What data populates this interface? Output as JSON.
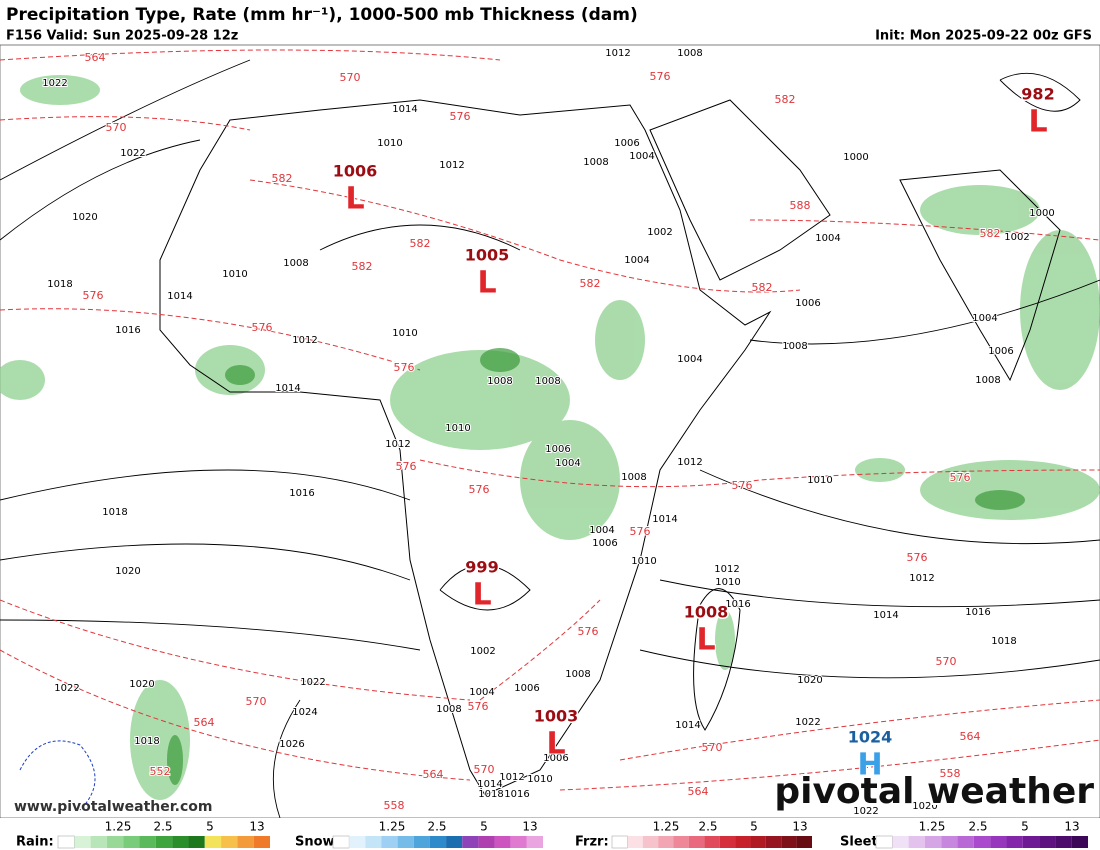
{
  "header": {
    "title": "Precipitation Type, Rate (mm hr⁻¹), 1000-500 mb Thickness (dam)",
    "valid": "F156 Valid: Sun 2025-09-28 12z",
    "init": "Init: Mon 2025-09-22 00z GFS"
  },
  "pressure_centers": [
    {
      "kind": "L",
      "value": "1006"
    },
    {
      "kind": "L",
      "value": "1005"
    },
    {
      "kind": "L",
      "value": "999"
    },
    {
      "kind": "L",
      "value": "1008"
    },
    {
      "kind": "L",
      "value": "1003"
    },
    {
      "kind": "L",
      "value": "982"
    },
    {
      "kind": "H",
      "value": "1024"
    }
  ],
  "isobar_labels": [
    "1022",
    "1022",
    "1020",
    "1018",
    "1016",
    "1010",
    "1014",
    "1008",
    "1012",
    "1010",
    "1014",
    "1012",
    "1010",
    "1008",
    "1008",
    "1016",
    "1018",
    "1020",
    "1016",
    "1018",
    "1020",
    "1022",
    "1014",
    "1024",
    "1026",
    "1022",
    "1022",
    "1020",
    "1018",
    "1010",
    "1012",
    "1014",
    "1016",
    "1008",
    "1006",
    "1004",
    "1004",
    "1006",
    "1008",
    "1000",
    "1002",
    "1000",
    "1012",
    "1008",
    "1014",
    "1012",
    "1010",
    "1008",
    "1004",
    "1006",
    "1004",
    "1002",
    "1004",
    "1012",
    "1014",
    "1008",
    "1006",
    "1004",
    "1004",
    "1006",
    "1010",
    "1012",
    "1010",
    "1002",
    "1004",
    "1006",
    "1008",
    "1008",
    "1006",
    "1010",
    "1012",
    "1014",
    "1018",
    "1016",
    "1020",
    "1022"
  ],
  "thickness_labels": [
    "564",
    "570",
    "570",
    "576",
    "576",
    "582",
    "582",
    "582",
    "582",
    "582",
    "582",
    "582",
    "588",
    "576",
    "576",
    "576",
    "576",
    "576",
    "576",
    "576",
    "576",
    "576",
    "576",
    "576",
    "570",
    "570",
    "570",
    "564",
    "564",
    "564",
    "564",
    "558",
    "558",
    "552",
    "570"
  ],
  "watermark": "www.pivotalweather.com",
  "logo": "pivotal weather",
  "legend": [
    {
      "name": "Rain:",
      "ticks": [
        "1.25",
        "2.5",
        "5",
        "13"
      ]
    },
    {
      "name": "Snow:",
      "ticks": [
        "1.25",
        "2.5",
        "5",
        "13"
      ]
    },
    {
      "name": "Frzr:",
      "ticks": [
        "1.25",
        "2.5",
        "5",
        "13"
      ]
    },
    {
      "name": "Sleet:",
      "ticks": [
        "1.25",
        "2.5",
        "5",
        "13"
      ]
    }
  ]
}
